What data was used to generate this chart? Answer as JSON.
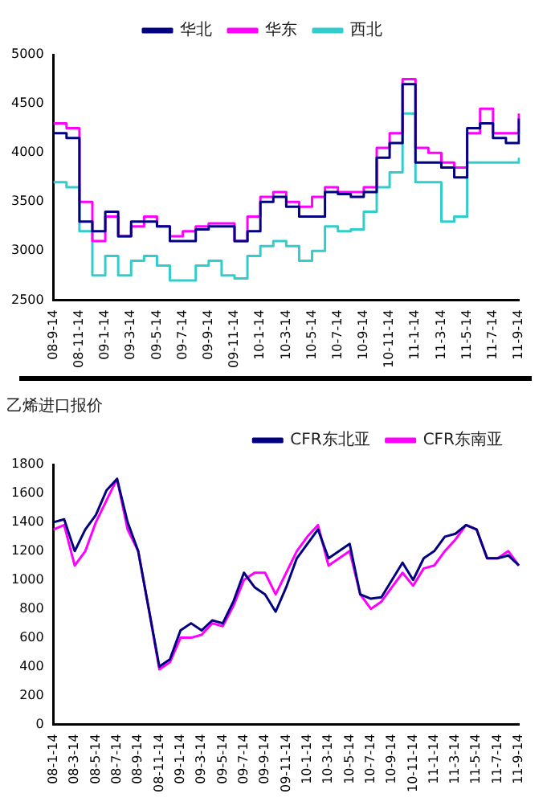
{
  "chart_data": [
    {
      "type": "step",
      "categories": [
        "08-9-14",
        null,
        "08-11-14",
        null,
        "09-1-14",
        null,
        "09-3-14",
        null,
        "09-5-14",
        null,
        "09-7-14",
        null,
        "09-9-14",
        null,
        "09-11-14",
        null,
        "10-1-14",
        null,
        "10-3-14",
        null,
        "10-5-14",
        null,
        "10-7-14",
        null,
        "10-9-14",
        null,
        "10-11-14",
        null,
        "11-1-14",
        null,
        "11-3-14",
        null,
        "11-5-14",
        null,
        "11-7-14",
        null,
        "11-9-14"
      ],
      "series": [
        {
          "name": "华北",
          "color": "#000080",
          "values": [
            4200,
            4150,
            3300,
            3200,
            3400,
            3150,
            3300,
            3300,
            3250,
            3100,
            3100,
            3220,
            3250,
            3250,
            3100,
            3200,
            3500,
            3550,
            3450,
            3350,
            3350,
            3600,
            3580,
            3550,
            3600,
            3950,
            4100,
            4700,
            3900,
            3900,
            3850,
            3750,
            4250,
            4300,
            4150,
            4100,
            4350
          ]
        },
        {
          "name": "华东",
          "color": "#ff00ff",
          "values": [
            4300,
            4250,
            3500,
            3100,
            3350,
            3150,
            3250,
            3350,
            3250,
            3150,
            3200,
            3250,
            3280,
            3280,
            3100,
            3350,
            3550,
            3600,
            3500,
            3450,
            3550,
            3650,
            3600,
            3600,
            3650,
            4050,
            4200,
            4750,
            4050,
            4000,
            3900,
            3850,
            4200,
            4450,
            4200,
            4200,
            4400
          ]
        },
        {
          "name": "西北",
          "color": "#33cccc",
          "values": [
            3700,
            3650,
            3200,
            2750,
            2950,
            2750,
            2900,
            2950,
            2850,
            2700,
            2700,
            2850,
            2900,
            2750,
            2720,
            2950,
            3050,
            3100,
            3050,
            2900,
            3000,
            3250,
            3200,
            3220,
            3400,
            3650,
            3800,
            4400,
            3700,
            3700,
            3300,
            3350,
            3900,
            3900,
            3900,
            3900,
            3950
          ]
        }
      ],
      "ylim": [
        2500,
        5000
      ],
      "yticks": [
        2500,
        3000,
        3500,
        4000,
        4500,
        5000
      ],
      "grid": false,
      "legend": "top"
    },
    {
      "type": "line",
      "title": "乙烯进口报价",
      "categories": [
        "08-1-14",
        null,
        "08-3-14",
        null,
        "08-5-14",
        null,
        "08-7-14",
        null,
        "08-9-14",
        null,
        "08-11-14",
        null,
        "09-1-14",
        null,
        "09-3-14",
        null,
        "09-5-14",
        null,
        "09-7-14",
        null,
        "09-9-14",
        null,
        "09-11-14",
        null,
        "10-1-14",
        null,
        "10-3-14",
        null,
        "10-5-14",
        null,
        "10-7-14",
        null,
        "10-9-14",
        null,
        "10-11-14",
        null,
        "11-1-14",
        null,
        "11-3-14",
        null,
        "11-5-14",
        null,
        "11-7-14",
        null,
        "11-9-14"
      ],
      "series": [
        {
          "name": "CFR东北亚",
          "color": "#000080",
          "values": [
            1400,
            1420,
            1200,
            1350,
            1450,
            1620,
            1700,
            1400,
            1200,
            800,
            400,
            450,
            650,
            700,
            650,
            720,
            700,
            850,
            1050,
            950,
            900,
            780,
            950,
            1150,
            1250,
            1350,
            1150,
            1200,
            1250,
            900,
            870,
            880,
            1000,
            1120,
            1000,
            1150,
            1200,
            1300,
            1320,
            1380,
            1350,
            1150,
            1150,
            1170,
            1100
          ]
        },
        {
          "name": "CFR东南亚",
          "color": "#ff00ff",
          "values": [
            1350,
            1380,
            1100,
            1200,
            1400,
            1550,
            1700,
            1350,
            1200,
            800,
            380,
            430,
            600,
            600,
            620,
            700,
            680,
            820,
            1000,
            1050,
            1050,
            900,
            1050,
            1200,
            1300,
            1380,
            1100,
            1150,
            1200,
            900,
            800,
            850,
            950,
            1050,
            960,
            1080,
            1100,
            1200,
            1280,
            1380,
            1350,
            1150,
            1150,
            1200,
            1100
          ]
        }
      ],
      "ylim": [
        0,
        1800
      ],
      "yticks": [
        0,
        200,
        400,
        600,
        800,
        1000,
        1200,
        1400,
        1600,
        1800
      ],
      "grid": false,
      "legend": "top right"
    }
  ]
}
